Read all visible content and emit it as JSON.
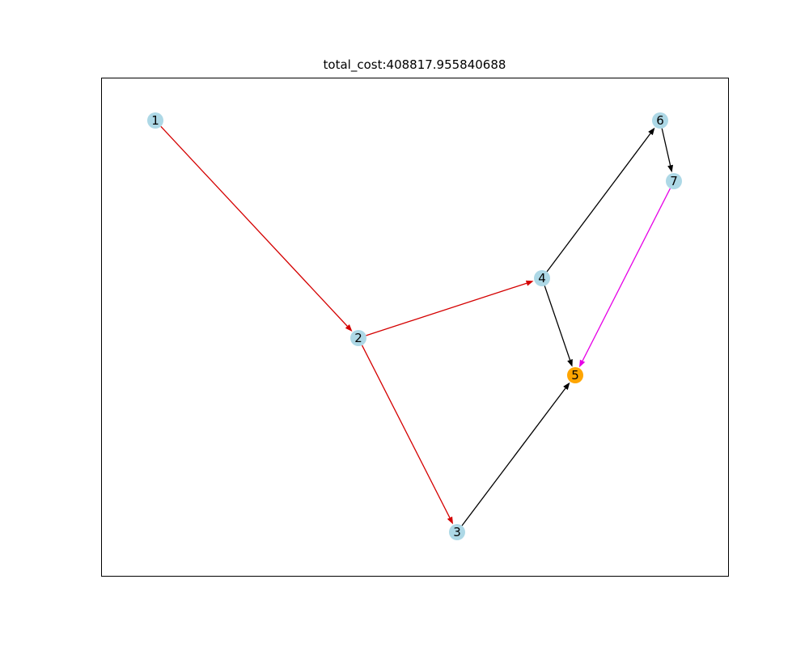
{
  "title": "total_cost:408817.955840688",
  "colors": {
    "node_default": "#add8e6",
    "node_highlight": "#ffa500",
    "edge_default": "#000000",
    "edge_path": "#d40000",
    "edge_special": "#e600e6",
    "frame": "#000000"
  },
  "nodes": [
    {
      "id": "1",
      "label": "1",
      "highlight": false
    },
    {
      "id": "2",
      "label": "2",
      "highlight": false
    },
    {
      "id": "3",
      "label": "3",
      "highlight": false
    },
    {
      "id": "4",
      "label": "4",
      "highlight": false
    },
    {
      "id": "5",
      "label": "5",
      "highlight": true
    },
    {
      "id": "6",
      "label": "6",
      "highlight": false
    },
    {
      "id": "7",
      "label": "7",
      "highlight": false
    }
  ],
  "edges": [
    {
      "source": "1",
      "target": "2",
      "style": "edge_path"
    },
    {
      "source": "2",
      "target": "4",
      "style": "edge_path"
    },
    {
      "source": "2",
      "target": "3",
      "style": "edge_path"
    },
    {
      "source": "3",
      "target": "5",
      "style": "edge_default"
    },
    {
      "source": "4",
      "target": "5",
      "style": "edge_default"
    },
    {
      "source": "4",
      "target": "6",
      "style": "edge_default"
    },
    {
      "source": "6",
      "target": "7",
      "style": "edge_default"
    },
    {
      "source": "7",
      "target": "5",
      "style": "edge_special"
    }
  ]
}
